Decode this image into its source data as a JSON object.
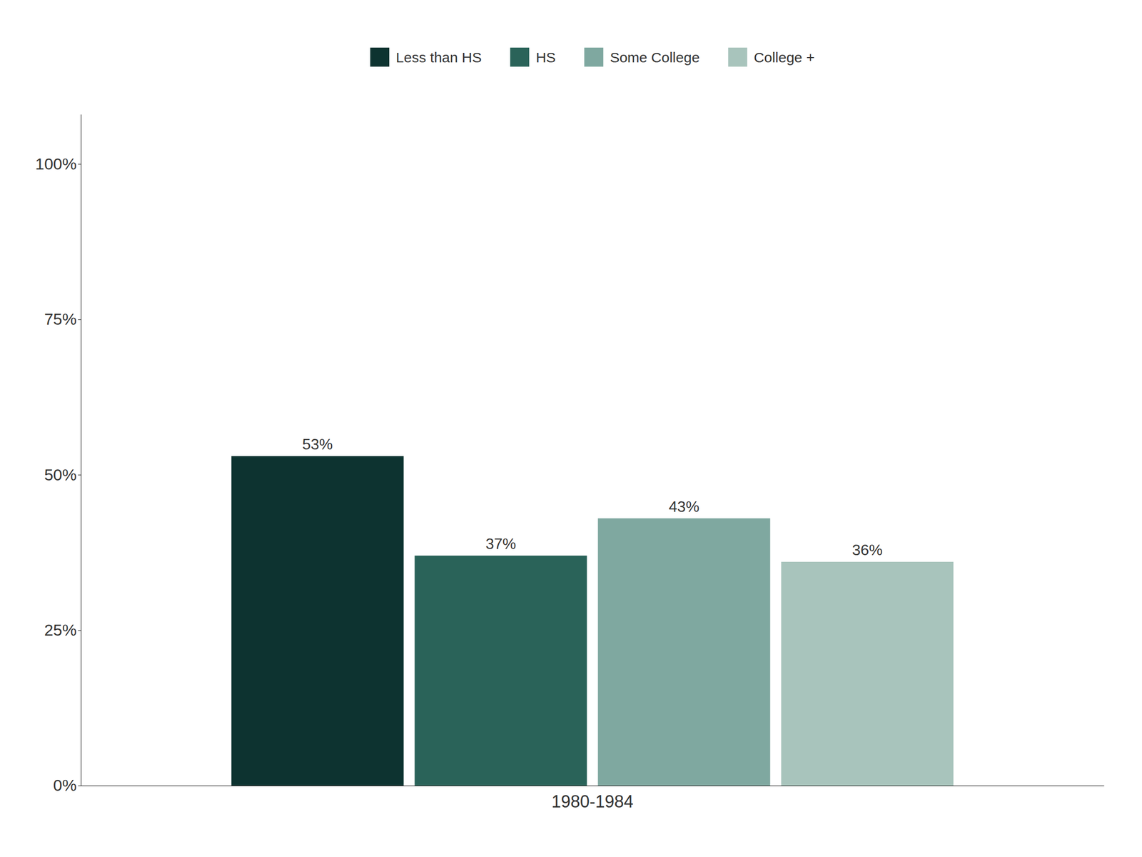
{
  "chart_data": {
    "type": "bar",
    "categories": [
      "1980-1984"
    ],
    "series": [
      {
        "name": "Less than HS",
        "color": "#0d3330",
        "values": [
          53
        ],
        "value_labels": [
          "53%"
        ]
      },
      {
        "name": "HS",
        "color": "#2a6359",
        "values": [
          37
        ],
        "value_labels": [
          "37%"
        ]
      },
      {
        "name": "Some College",
        "color": "#7fa8a0",
        "values": [
          43
        ],
        "value_labels": [
          "43%"
        ]
      },
      {
        "name": "College +",
        "color": "#a8c4bc",
        "values": [
          36
        ],
        "value_labels": [
          "36%"
        ]
      }
    ],
    "ylim": [
      0,
      108
    ],
    "yticks": [
      {
        "value": 0,
        "label": "0%"
      },
      {
        "value": 25,
        "label": "25%"
      },
      {
        "value": 50,
        "label": "50%"
      },
      {
        "value": 75,
        "label": "75%"
      },
      {
        "value": 100,
        "label": "100%"
      }
    ],
    "grid": false,
    "legend": "top",
    "data_labels": true
  }
}
